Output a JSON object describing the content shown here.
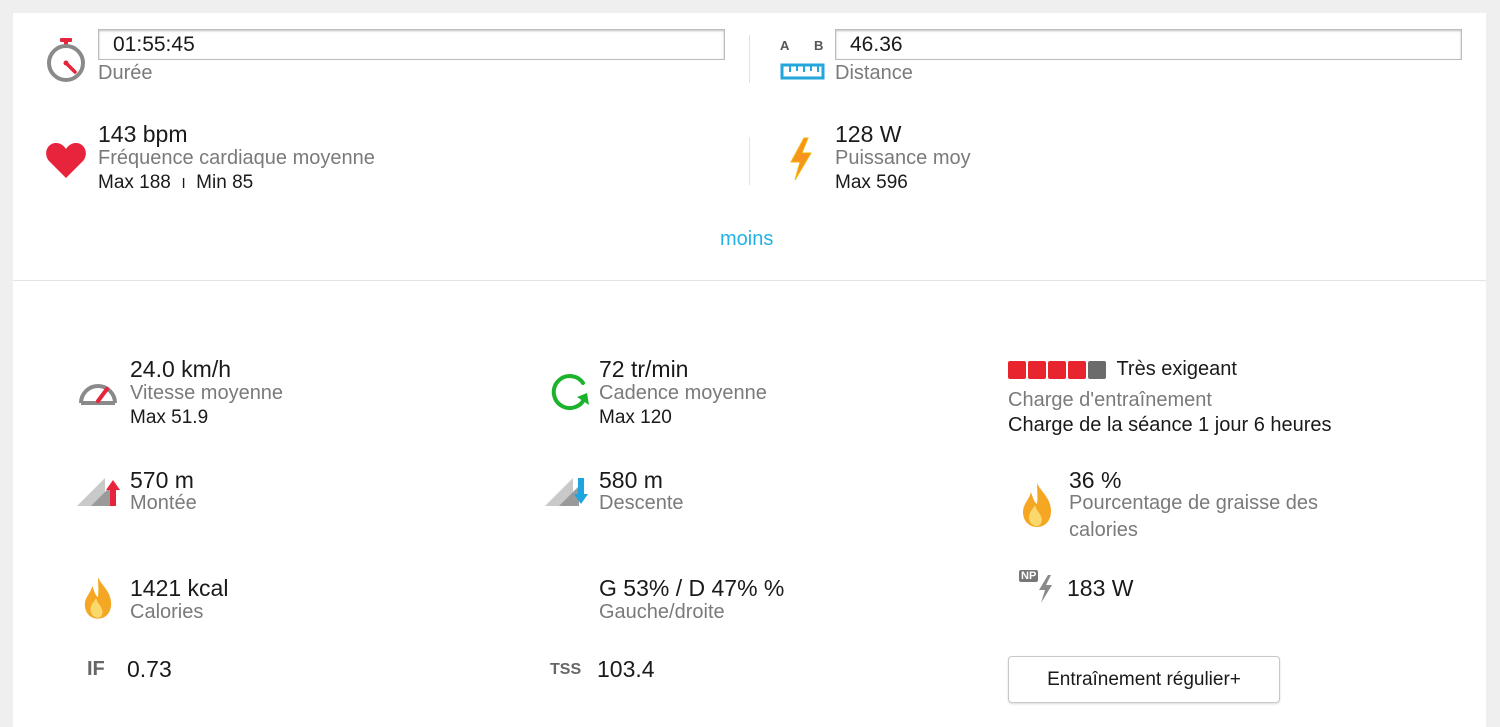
{
  "summary": {
    "duration": {
      "value": "01:55:45",
      "label": "Durée"
    },
    "distance": {
      "value": "46.36",
      "label": "Distance",
      "a_label": "A",
      "b_label": "B"
    },
    "heart_rate": {
      "value": "143 bpm",
      "label": "Fréquence cardiaque moyenne",
      "max": "Max 188",
      "separator": "I",
      "min": "Min 85"
    },
    "power": {
      "value": "128 W",
      "label": "Puissance moy",
      "max": "Max 596"
    },
    "less_link": "moins"
  },
  "details": {
    "speed": {
      "value": "24.0 km/h",
      "label": "Vitesse moyenne",
      "max": "Max 51.9"
    },
    "cadence": {
      "value": "72 tr/min",
      "label": "Cadence moyenne",
      "max": "Max 120"
    },
    "training_load": {
      "level_text": "Très exigeant",
      "filled": 4,
      "total": 5,
      "label": "Charge d'entraînement",
      "session": "Charge de la séance 1 jour 6 heures"
    },
    "ascent": {
      "value": "570 m",
      "label": "Montée"
    },
    "descent": {
      "value": "580 m",
      "label": "Descente"
    },
    "fat": {
      "value": "36 %",
      "label_line1": "Pourcentage de graisse des",
      "label_line2": "calories"
    },
    "calories": {
      "value": "1421 kcal",
      "label": "Calories"
    },
    "balance": {
      "value": "G 53% / D 47% %",
      "label": "Gauche/droite"
    },
    "np": {
      "icon_text": "NP",
      "value": "183 W"
    },
    "if": {
      "icon_text": "IF",
      "value": "0.73"
    },
    "tss": {
      "icon_text": "TSS",
      "value": "103.4"
    },
    "training_button": "Entraînement régulier+"
  },
  "colors": {
    "accent": "#22b2e6",
    "heart": "#e8243c",
    "load_filled": "#e8242e",
    "load_empty": "#6b6b6b",
    "cadence": "#1bb32b",
    "flame": "#f5a623"
  }
}
